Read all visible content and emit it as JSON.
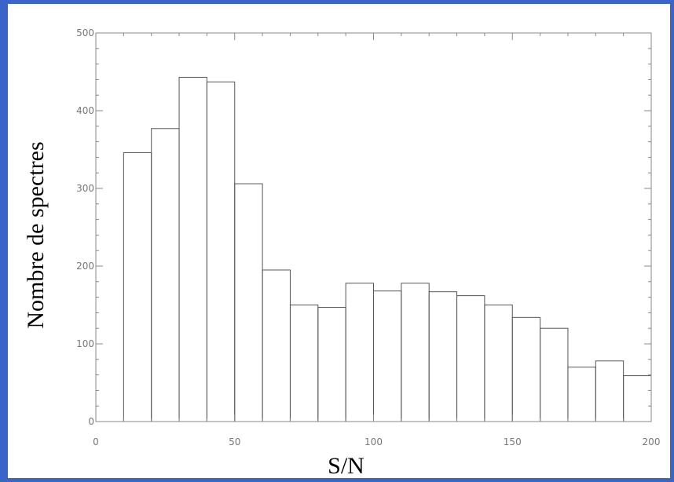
{
  "colors": {
    "background": "#3a64c8",
    "panel": "#ffffff",
    "axis": "#888888",
    "bars": "#555555",
    "tick_text": "#777777",
    "title_text": "#000000"
  },
  "chart_data": {
    "type": "bar",
    "xlabel": "S/N",
    "ylabel": "Nombre de spectres",
    "xlim": [
      0,
      200
    ],
    "ylim": [
      0,
      500
    ],
    "xticks": [
      0,
      50,
      100,
      150,
      200
    ],
    "yticks": [
      0,
      100,
      200,
      300,
      400,
      500
    ],
    "grid": false,
    "bin_width": 10,
    "bins": [
      {
        "x0": 10,
        "x1": 20,
        "value": 346
      },
      {
        "x0": 20,
        "x1": 30,
        "value": 377
      },
      {
        "x0": 30,
        "x1": 40,
        "value": 443
      },
      {
        "x0": 40,
        "x1": 50,
        "value": 437
      },
      {
        "x0": 50,
        "x1": 60,
        "value": 306
      },
      {
        "x0": 60,
        "x1": 70,
        "value": 195
      },
      {
        "x0": 70,
        "x1": 80,
        "value": 150
      },
      {
        "x0": 80,
        "x1": 90,
        "value": 147
      },
      {
        "x0": 90,
        "x1": 100,
        "value": 178
      },
      {
        "x0": 100,
        "x1": 110,
        "value": 168
      },
      {
        "x0": 110,
        "x1": 120,
        "value": 178
      },
      {
        "x0": 120,
        "x1": 130,
        "value": 167
      },
      {
        "x0": 130,
        "x1": 140,
        "value": 162
      },
      {
        "x0": 140,
        "x1": 150,
        "value": 150
      },
      {
        "x0": 150,
        "x1": 160,
        "value": 134
      },
      {
        "x0": 160,
        "x1": 170,
        "value": 120
      },
      {
        "x0": 170,
        "x1": 180,
        "value": 70
      },
      {
        "x0": 180,
        "x1": 190,
        "value": 78
      },
      {
        "x0": 190,
        "x1": 200,
        "value": 59
      }
    ]
  }
}
